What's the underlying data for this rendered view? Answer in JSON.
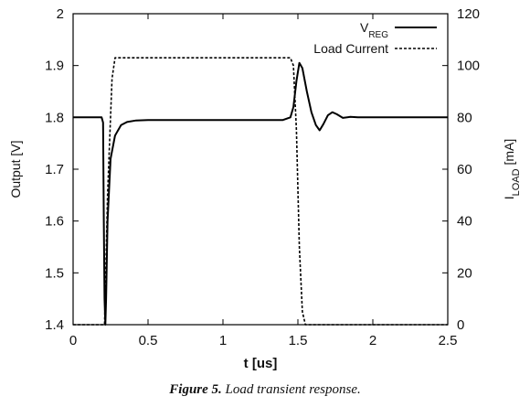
{
  "chart_data": {
    "type": "line",
    "xlabel": "t [us]",
    "ylabel": "Output [V]",
    "y2label": {
      "main": "I",
      "sub": "LOAD",
      "unit": " [mA]"
    },
    "xlim": [
      0,
      2.5
    ],
    "ylim": [
      1.4,
      2.0
    ],
    "y2lim": [
      0,
      120
    ],
    "xticks": [
      0,
      0.5,
      1,
      1.5,
      2,
      2.5
    ],
    "xtick_labels": [
      "0",
      "0.5",
      "1",
      "1.5",
      "2",
      "2.5"
    ],
    "yticks": [
      1.4,
      1.5,
      1.6,
      1.7,
      1.8,
      1.9,
      2.0
    ],
    "ytick_labels": [
      "1.4",
      "1.5",
      "1.6",
      "1.7",
      "1.8",
      "1.9",
      "2"
    ],
    "y2ticks": [
      0,
      20,
      40,
      60,
      80,
      100,
      120
    ],
    "y2tick_labels": [
      "0",
      "20",
      "40",
      "60",
      "80",
      "100",
      "120"
    ],
    "grid": false,
    "legend_position": "top-right",
    "series": [
      {
        "name": {
          "main": "V",
          "sub": "REG"
        },
        "axis": "left",
        "style": "solid",
        "color": "#000000",
        "points": [
          [
            0,
            1.8
          ],
          [
            0.19,
            1.8
          ],
          [
            0.2,
            1.79
          ],
          [
            0.205,
            1.6
          ],
          [
            0.21,
            1.45
          ],
          [
            0.215,
            1.4
          ],
          [
            0.22,
            1.45
          ],
          [
            0.23,
            1.6
          ],
          [
            0.25,
            1.72
          ],
          [
            0.28,
            1.765
          ],
          [
            0.32,
            1.785
          ],
          [
            0.36,
            1.791
          ],
          [
            0.42,
            1.794
          ],
          [
            0.5,
            1.795
          ],
          [
            1.4,
            1.795
          ],
          [
            1.45,
            1.8
          ],
          [
            1.47,
            1.82
          ],
          [
            1.49,
            1.87
          ],
          [
            1.51,
            1.905
          ],
          [
            1.53,
            1.895
          ],
          [
            1.56,
            1.85
          ],
          [
            1.59,
            1.81
          ],
          [
            1.62,
            1.785
          ],
          [
            1.645,
            1.775
          ],
          [
            1.67,
            1.787
          ],
          [
            1.7,
            1.804
          ],
          [
            1.73,
            1.81
          ],
          [
            1.76,
            1.806
          ],
          [
            1.8,
            1.799
          ],
          [
            1.85,
            1.801
          ],
          [
            1.9,
            1.8
          ],
          [
            2.5,
            1.8
          ]
        ]
      },
      {
        "name": "Load Current",
        "axis": "right",
        "style": "dashed",
        "color": "#000000",
        "points": [
          [
            0,
            0
          ],
          [
            0.21,
            0
          ],
          [
            0.23,
            50
          ],
          [
            0.26,
            95
          ],
          [
            0.28,
            103
          ],
          [
            1.45,
            103
          ],
          [
            1.47,
            100
          ],
          [
            1.49,
            75
          ],
          [
            1.51,
            30
          ],
          [
            1.53,
            5
          ],
          [
            1.55,
            0
          ],
          [
            2.5,
            0
          ]
        ]
      }
    ]
  },
  "caption": {
    "label": "Figure 5.",
    "text": "Load transient response."
  }
}
